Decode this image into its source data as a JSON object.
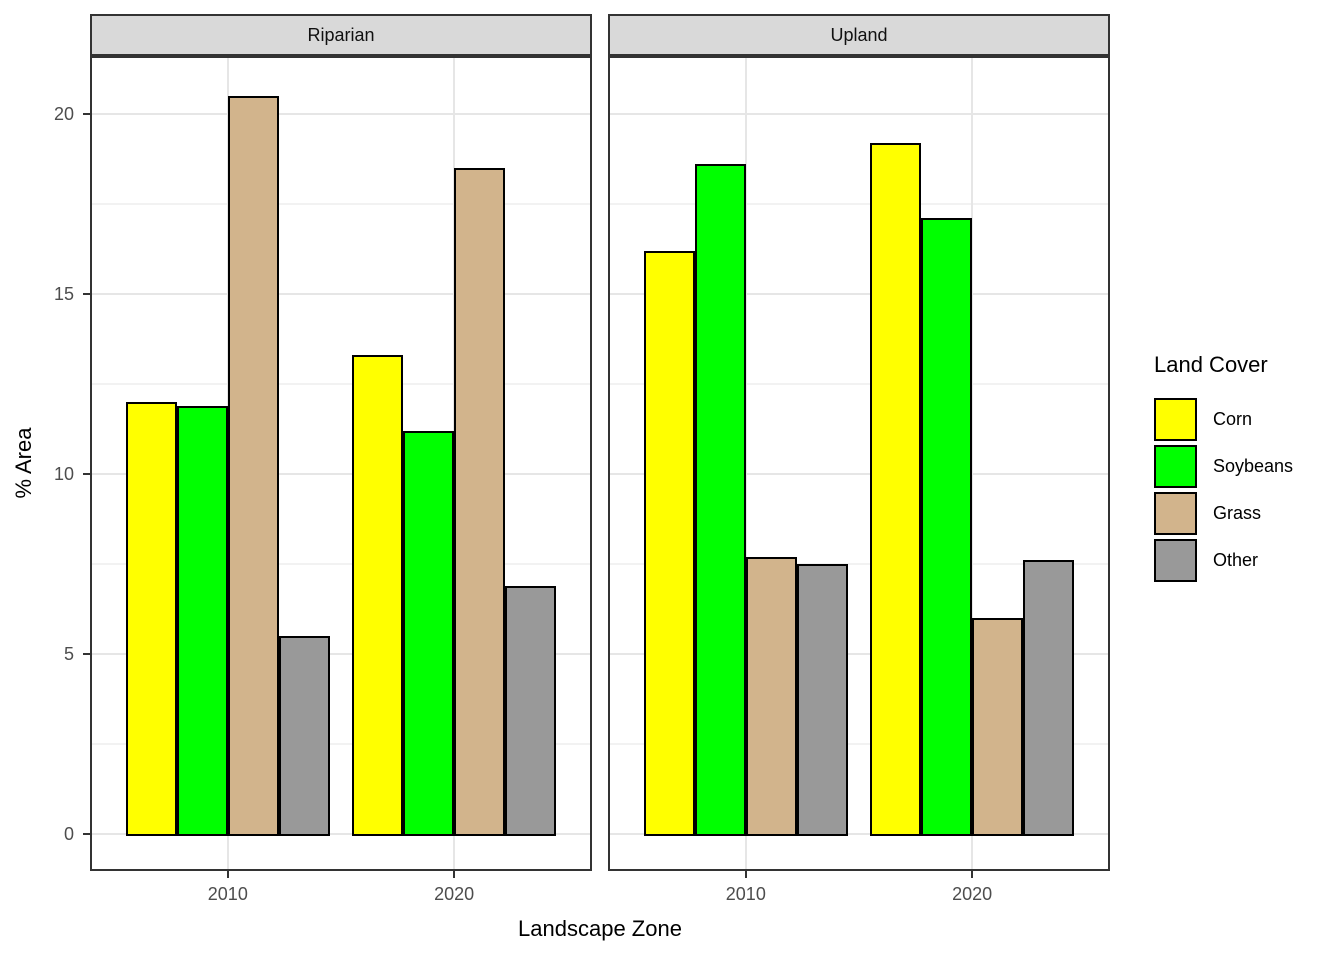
{
  "chart_data": {
    "type": "bar",
    "faceted_by": "Landscape Zone panel",
    "categories": [
      "2010",
      "2020"
    ],
    "facets": [
      {
        "label": "Riparian",
        "series": [
          {
            "name": "Corn",
            "values": [
              12.0,
              13.3
            ]
          },
          {
            "name": "Soybeans",
            "values": [
              11.9,
              11.2
            ]
          },
          {
            "name": "Grass",
            "values": [
              20.5,
              18.5
            ]
          },
          {
            "name": "Other",
            "values": [
              5.5,
              6.9
            ]
          }
        ]
      },
      {
        "label": "Upland",
        "series": [
          {
            "name": "Corn",
            "values": [
              16.2,
              19.2
            ]
          },
          {
            "name": "Soybeans",
            "values": [
              18.6,
              17.1
            ]
          },
          {
            "name": "Grass",
            "values": [
              7.7,
              6.0
            ]
          },
          {
            "name": "Other",
            "values": [
              7.5,
              7.6
            ]
          }
        ]
      }
    ],
    "xlabel": "Landscape Zone",
    "ylabel": "% Area",
    "ylim": [
      -1.03,
      21.6
    ],
    "yticks": [
      0,
      5,
      10,
      15,
      20
    ],
    "yminor": [
      2.5,
      7.5,
      12.5,
      17.5
    ],
    "grid": "on",
    "legend": {
      "title": "Land Cover",
      "position": "right",
      "items": [
        {
          "label": "Corn",
          "color": "#FFFF00"
        },
        {
          "label": "Soybeans",
          "color": "#00FF00"
        },
        {
          "label": "Grass",
          "color": "#D2B48C"
        },
        {
          "label": "Other",
          "color": "#999999"
        }
      ]
    },
    "styles": {
      "bar_outline": "#000000",
      "strip_background": "#D9D9D9",
      "panel_border": "#333333",
      "major_grid": "#E6E6E6",
      "minor_grid": "#F2F2F2",
      "tick_label_color": "#4D4D4D"
    }
  }
}
